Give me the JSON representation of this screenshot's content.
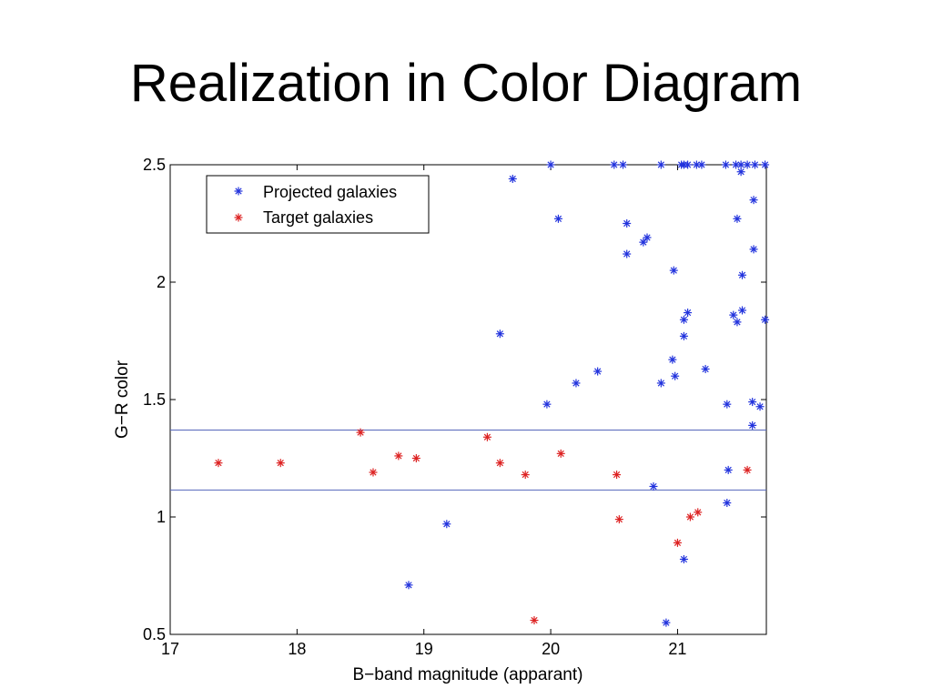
{
  "slide": {
    "title": "Realization in Color Diagram"
  },
  "chart_data": {
    "type": "scatter",
    "xlabel": "B−band magnitude (apparant)",
    "ylabel": "G−R color",
    "xlim": [
      17,
      21.7
    ],
    "ylim": [
      0.5,
      2.5
    ],
    "xticks": [
      "17",
      "18",
      "19",
      "20",
      "21"
    ],
    "yticks": [
      "0.5",
      "1",
      "1.5",
      "2",
      "2.5"
    ],
    "grid": false,
    "legend": {
      "placement": "top-left"
    },
    "reference_lines": [
      1.37,
      1.115
    ],
    "colors": {
      "projected": "#2233dd",
      "target": "#dd2222",
      "reference_line": "#5566bb"
    },
    "marker": "asterisk",
    "series": [
      {
        "name": "Projected galaxies",
        "key": "projected",
        "points": [
          [
            19.7,
            2.44
          ],
          [
            20.0,
            2.5
          ],
          [
            20.06,
            2.27
          ],
          [
            20.5,
            2.5
          ],
          [
            20.57,
            2.5
          ],
          [
            20.6,
            2.25
          ],
          [
            20.6,
            2.12
          ],
          [
            20.73,
            2.17
          ],
          [
            20.76,
            2.19
          ],
          [
            20.87,
            2.5
          ],
          [
            20.97,
            2.05
          ],
          [
            21.03,
            2.5
          ],
          [
            21.05,
            2.5
          ],
          [
            21.08,
            2.5
          ],
          [
            21.15,
            2.5
          ],
          [
            21.19,
            2.5
          ],
          [
            21.38,
            2.5
          ],
          [
            21.46,
            2.5
          ],
          [
            21.5,
            2.5
          ],
          [
            21.55,
            2.5
          ],
          [
            21.61,
            2.5
          ],
          [
            21.69,
            2.5
          ],
          [
            21.5,
            2.47
          ],
          [
            21.6,
            2.35
          ],
          [
            21.47,
            2.27
          ],
          [
            21.6,
            2.14
          ],
          [
            21.51,
            2.03
          ],
          [
            21.51,
            1.88
          ],
          [
            21.44,
            1.86
          ],
          [
            21.47,
            1.83
          ],
          [
            21.69,
            1.84
          ],
          [
            21.08,
            1.87
          ],
          [
            21.05,
            1.84
          ],
          [
            21.05,
            1.77
          ],
          [
            19.6,
            1.78
          ],
          [
            20.96,
            1.67
          ],
          [
            20.98,
            1.6
          ],
          [
            20.87,
            1.57
          ],
          [
            21.22,
            1.63
          ],
          [
            20.37,
            1.62
          ],
          [
            20.2,
            1.57
          ],
          [
            19.97,
            1.48
          ],
          [
            21.39,
            1.48
          ],
          [
            21.59,
            1.49
          ],
          [
            21.65,
            1.47
          ],
          [
            21.59,
            1.39
          ],
          [
            21.4,
            1.2
          ],
          [
            20.81,
            1.13
          ],
          [
            21.39,
            1.06
          ],
          [
            19.18,
            0.97
          ],
          [
            21.05,
            0.82
          ],
          [
            18.88,
            0.71
          ],
          [
            20.91,
            0.55
          ]
        ]
      },
      {
        "name": "Target galaxies",
        "key": "target",
        "points": [
          [
            17.38,
            1.23
          ],
          [
            17.87,
            1.23
          ],
          [
            18.5,
            1.36
          ],
          [
            18.6,
            1.19
          ],
          [
            18.8,
            1.26
          ],
          [
            18.94,
            1.25
          ],
          [
            19.5,
            1.34
          ],
          [
            19.6,
            1.23
          ],
          [
            19.8,
            1.18
          ],
          [
            20.08,
            1.27
          ],
          [
            20.52,
            1.18
          ],
          [
            20.54,
            0.99
          ],
          [
            21.0,
            0.89
          ],
          [
            21.1,
            1.0
          ],
          [
            21.16,
            1.02
          ],
          [
            21.55,
            1.2
          ],
          [
            19.87,
            0.56
          ]
        ]
      }
    ]
  }
}
